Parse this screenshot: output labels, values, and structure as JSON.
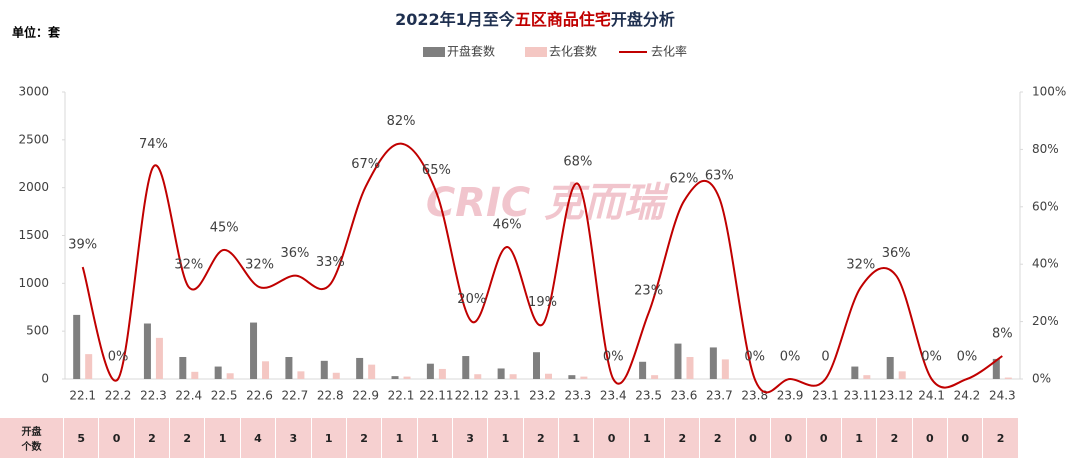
{
  "chart_data": {
    "type": "bar_line",
    "title": [
      "2022年1月至今",
      "五区商品住宅",
      "开盘分析"
    ],
    "unit": "单位：套",
    "watermark": "CRIC 克而瑞",
    "categories": [
      "22.1",
      "22.2",
      "22.3",
      "22.4",
      "22.5",
      "22.6",
      "22.7",
      "22.8",
      "22.9",
      "22.1",
      "22.11",
      "22.12",
      "23.1",
      "23.2",
      "23.3",
      "23.4",
      "23.5",
      "23.6",
      "23.7",
      "23.8",
      "23.9",
      "23.1",
      "23.11",
      "23.12",
      "24.1",
      "24.2",
      "24.3"
    ],
    "series": [
      {
        "name": "开盘套数",
        "color": "#7f7f7f",
        "values": [
          670,
          0,
          580,
          230,
          130,
          590,
          230,
          190,
          220,
          30,
          160,
          240,
          110,
          280,
          40,
          0,
          180,
          370,
          330,
          0,
          0,
          0,
          130,
          230,
          0,
          0,
          210
        ]
      },
      {
        "name": "去化套数",
        "color": "#f4c7c3",
        "values": [
          260,
          0,
          430,
          75,
          60,
          185,
          80,
          65,
          150,
          25,
          105,
          50,
          50,
          55,
          25,
          0,
          40,
          230,
          205,
          0,
          0,
          0,
          40,
          80,
          0,
          0,
          15
        ]
      },
      {
        "name": "去化率",
        "color": "#c00000",
        "axis": "y2",
        "values": [
          39,
          0,
          74,
          32,
          45,
          32,
          36,
          33,
          67,
          82,
          65,
          20,
          46,
          19,
          68,
          0,
          23,
          62,
          63,
          0,
          0,
          0,
          32,
          36,
          0,
          0,
          8
        ],
        "value_labels": [
          "39%",
          "0%",
          "74%",
          "32%",
          "45%",
          "32%",
          "36%",
          "33%",
          "67%",
          "82%",
          "65%",
          "20%",
          "46%",
          "19%",
          "68%",
          "0%",
          "23%",
          "62%",
          "63%",
          "0%",
          "0%",
          "0",
          "32%",
          "36%",
          "0%",
          "0%",
          "8%"
        ]
      }
    ],
    "ylim": [
      0,
      3000
    ],
    "yticks": [
      0,
      500,
      1000,
      1500,
      2000,
      2500,
      3000
    ],
    "y2lim": [
      0,
      100
    ],
    "y2ticks": [
      {
        "value": 0,
        "label": "0%"
      },
      {
        "value": 20,
        "label": "20%"
      },
      {
        "value": 40,
        "label": "40%"
      },
      {
        "value": 60,
        "label": "60%"
      },
      {
        "value": 80,
        "label": "80%"
      },
      {
        "value": 100,
        "label": "100%"
      }
    ],
    "table": {
      "row_label": "开盘个数",
      "values": [
        5,
        0,
        2,
        2,
        1,
        4,
        3,
        1,
        2,
        1,
        1,
        3,
        1,
        2,
        1,
        0,
        1,
        2,
        2,
        0,
        0,
        0,
        1,
        2,
        0,
        0,
        2
      ]
    }
  }
}
